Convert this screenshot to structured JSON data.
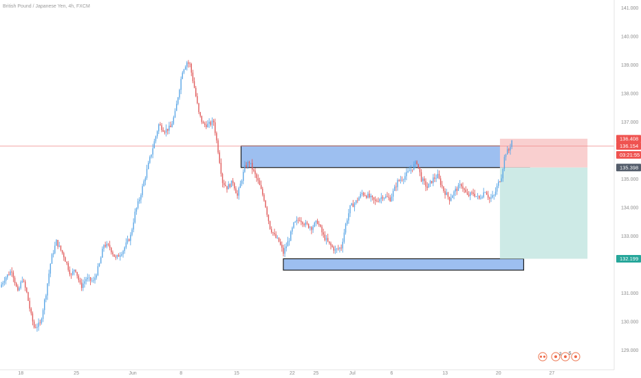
{
  "header": {
    "symbol_title": "British Pound / Japanese Yen, 4h, FXCM"
  },
  "colors": {
    "up": "#5aa6e6",
    "down": "#e05a5a",
    "zone_fill": "#9dbff0",
    "zone_stroke": "#1b1b1b",
    "stop_fill": "#f9cfcf",
    "target_fill": "#cdeae6",
    "price_line": "#ef8a8a",
    "tag_red": "#ef5350",
    "tag_dark": "#545d6b",
    "tag_teal": "#26a69a"
  },
  "price_tags": [
    {
      "label": "136.408",
      "value": 136.408,
      "kind": "red"
    },
    {
      "label": "136.154",
      "value": 136.154,
      "kind": "red"
    },
    {
      "label": "03:21:55",
      "value": 135.84,
      "kind": "red"
    },
    {
      "label": "135.398",
      "value": 135.398,
      "kind": "dark"
    },
    {
      "label": "132.199",
      "value": 132.199,
      "kind": "teal"
    }
  ],
  "toolbar": {
    "badge_left": "2",
    "badge_right": "5"
  },
  "chart_data": {
    "type": "candlestick",
    "title": "British Pound / Japanese Yen, 4h, FXCM",
    "ylim": [
      128.5,
      141.2
    ],
    "y_ticks": [
      {
        "label": "141.000",
        "value": 141
      },
      {
        "label": "140.000",
        "value": 140
      },
      {
        "label": "139.000",
        "value": 139
      },
      {
        "label": "138.000",
        "value": 138
      },
      {
        "label": "137.000",
        "value": 137
      },
      {
        "label": "135.000",
        "value": 135
      },
      {
        "label": "134.000",
        "value": 134
      },
      {
        "label": "133.000",
        "value": 133
      },
      {
        "label": "131.000",
        "value": 131
      },
      {
        "label": "130.000",
        "value": 130
      },
      {
        "label": "129.000",
        "value": 129
      }
    ],
    "x_ticks": [
      {
        "label": "18",
        "x": 0.2
      },
      {
        "label": "25",
        "x": 7.7
      },
      {
        "label": "Jun",
        "x": 15.3
      },
      {
        "label": "8",
        "x": 21.8
      },
      {
        "label": "15",
        "x": 29.3
      },
      {
        "label": "22",
        "x": 36.8
      },
      {
        "label": "25",
        "x": 40.0
      },
      {
        "label": "Jul",
        "x": 44.9
      },
      {
        "label": "6",
        "x": 50.2
      },
      {
        "label": "13",
        "x": 57.4
      },
      {
        "label": "20",
        "x": 64.6
      },
      {
        "label": "27",
        "x": 71.8
      }
    ],
    "x_range": [
      -2.6,
      80.2
    ],
    "price_path": [
      [
        -2.6,
        131.2
      ],
      [
        -2.0,
        131.5
      ],
      [
        -1.0,
        131.8
      ],
      [
        -0.2,
        131.0
      ],
      [
        0.4,
        131.5
      ],
      [
        1.0,
        131.0
      ],
      [
        1.6,
        130.2
      ],
      [
        2.0,
        129.8
      ],
      [
        2.8,
        129.9
      ],
      [
        3.6,
        131.0
      ],
      [
        4.3,
        132.2
      ],
      [
        5.0,
        132.8
      ],
      [
        6.0,
        132.3
      ],
      [
        7.0,
        131.6
      ],
      [
        7.5,
        131.9
      ],
      [
        8.3,
        131.2
      ],
      [
        9.0,
        131.5
      ],
      [
        10.0,
        131.4
      ],
      [
        10.8,
        132.0
      ],
      [
        11.4,
        132.7
      ],
      [
        12.2,
        132.6
      ],
      [
        13.0,
        132.2
      ],
      [
        14.0,
        132.5
      ],
      [
        15.0,
        133.0
      ],
      [
        15.6,
        133.8
      ],
      [
        16.2,
        134.3
      ],
      [
        17.0,
        135.1
      ],
      [
        17.6,
        135.7
      ],
      [
        18.2,
        136.3
      ],
      [
        18.8,
        136.9
      ],
      [
        19.6,
        136.7
      ],
      [
        20.4,
        136.8
      ],
      [
        21.0,
        137.3
      ],
      [
        21.6,
        138.2
      ],
      [
        22.0,
        138.8
      ],
      [
        22.6,
        139.1
      ],
      [
        23.0,
        139.0
      ],
      [
        23.6,
        138.2
      ],
      [
        24.2,
        137.3
      ],
      [
        24.8,
        136.9
      ],
      [
        25.5,
        136.9
      ],
      [
        26.2,
        137.0
      ],
      [
        26.8,
        136.0
      ],
      [
        27.4,
        134.9
      ],
      [
        28.0,
        134.7
      ],
      [
        28.8,
        134.9
      ],
      [
        29.4,
        134.4
      ],
      [
        29.9,
        134.9
      ],
      [
        30.4,
        135.4
      ],
      [
        31.0,
        135.6
      ],
      [
        31.5,
        135.3
      ],
      [
        32.2,
        134.9
      ],
      [
        33.0,
        134.3
      ],
      [
        33.8,
        133.3
      ],
      [
        34.4,
        133.0
      ],
      [
        35.0,
        132.8
      ],
      [
        35.6,
        132.4
      ],
      [
        36.4,
        132.9
      ],
      [
        37.0,
        133.4
      ],
      [
        37.8,
        133.6
      ],
      [
        38.6,
        133.4
      ],
      [
        39.4,
        133.3
      ],
      [
        40.2,
        133.5
      ],
      [
        41.0,
        133.0
      ],
      [
        41.8,
        132.7
      ],
      [
        42.6,
        132.5
      ],
      [
        43.4,
        132.6
      ],
      [
        44.0,
        133.4
      ],
      [
        44.6,
        134.0
      ],
      [
        45.4,
        134.2
      ],
      [
        46.2,
        134.5
      ],
      [
        47.0,
        134.4
      ],
      [
        48.0,
        134.2
      ],
      [
        49.0,
        134.4
      ],
      [
        50.0,
        134.3
      ],
      [
        51.0,
        134.9
      ],
      [
        52.0,
        135.1
      ],
      [
        53.0,
        135.4
      ],
      [
        53.6,
        135.6
      ],
      [
        54.2,
        135.0
      ],
      [
        55.0,
        134.7
      ],
      [
        55.8,
        135.0
      ],
      [
        56.4,
        135.1
      ],
      [
        57.2,
        134.6
      ],
      [
        58.0,
        134.3
      ],
      [
        58.8,
        134.6
      ],
      [
        59.6,
        134.8
      ],
      [
        60.4,
        134.4
      ],
      [
        61.2,
        134.5
      ],
      [
        62.0,
        134.3
      ],
      [
        62.8,
        134.6
      ],
      [
        63.4,
        134.3
      ],
      [
        64.0,
        134.4
      ],
      [
        64.5,
        134.8
      ],
      [
        65.0,
        135.1
      ],
      [
        65.5,
        135.9
      ],
      [
        66.0,
        136.0
      ],
      [
        66.4,
        136.35
      ]
    ],
    "zones": [
      {
        "from_x": 29.9,
        "to_x": 68.8,
        "top": 136.154,
        "bottom": 135.398,
        "style": "zone"
      },
      {
        "from_x": 35.6,
        "to_x": 68.0,
        "top": 132.199,
        "bottom": 131.8,
        "style": "zone"
      },
      {
        "from_x": 64.8,
        "to_x": 76.6,
        "top": 136.408,
        "bottom": 135.398,
        "style": "stop"
      },
      {
        "from_x": 64.8,
        "to_x": 76.6,
        "top": 135.398,
        "bottom": 132.199,
        "style": "target"
      }
    ],
    "current_price": 136.154,
    "grid": false,
    "legend": "none"
  }
}
